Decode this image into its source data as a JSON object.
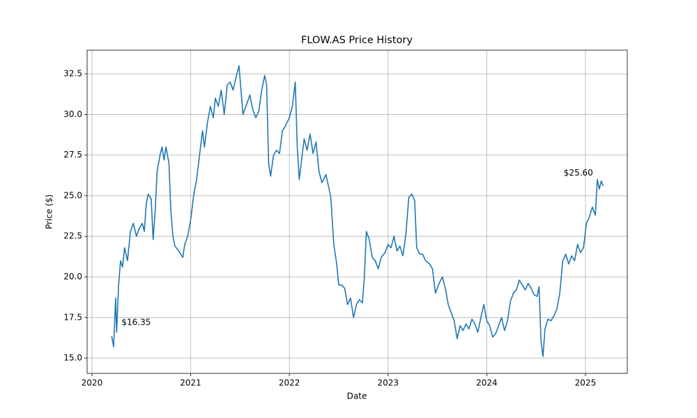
{
  "chart_data": {
    "type": "line",
    "title": "FLOW.AS Price History",
    "x_label": "Date",
    "y_label": "Price ($)",
    "grid": true,
    "xlim": [
      2019.951,
      2025.424
    ],
    "xticks": [
      2020,
      2021,
      2022,
      2023,
      2024,
      2025
    ],
    "ylim": [
      14.06,
      33.96
    ],
    "yticks": [
      {
        "value": 15,
        "label": "15.0"
      },
      {
        "value": 17.5,
        "label": "17.5"
      },
      {
        "value": 20,
        "label": "20.0"
      },
      {
        "value": 22.5,
        "label": "22.5"
      },
      {
        "value": 25,
        "label": "25.0"
      },
      {
        "value": 27.5,
        "label": "27.5"
      },
      {
        "value": 30,
        "label": "30.0"
      },
      {
        "value": 32.5,
        "label": "32.5"
      }
    ],
    "annotations": [
      {
        "text": "$16.35",
        "x": 2020.3,
        "y": 17.2
      },
      {
        "text": "$25.60",
        "x": 2024.78,
        "y": 26.4
      }
    ],
    "series": [
      {
        "name": "FLOW.AS",
        "color": "#1f77b4",
        "x": [
          2020.2,
          2020.22,
          2020.24,
          2020.25,
          2020.27,
          2020.29,
          2020.31,
          2020.33,
          2020.36,
          2020.39,
          2020.42,
          2020.45,
          2020.48,
          2020.51,
          2020.53,
          2020.55,
          2020.57,
          2020.6,
          2020.62,
          2020.64,
          2020.66,
          2020.69,
          2020.71,
          2020.73,
          2020.75,
          2020.78,
          2020.8,
          2020.82,
          2020.84,
          2020.88,
          2020.92,
          2020.94,
          2020.97,
          2021.0,
          2021.03,
          2021.06,
          2021.09,
          2021.12,
          2021.14,
          2021.17,
          2021.2,
          2021.23,
          2021.25,
          2021.28,
          2021.31,
          2021.34,
          2021.37,
          2021.4,
          2021.43,
          2021.46,
          2021.49,
          2021.51,
          2021.53,
          2021.56,
          2021.6,
          2021.63,
          2021.66,
          2021.69,
          2021.72,
          2021.75,
          2021.77,
          2021.79,
          2021.81,
          2021.84,
          2021.87,
          2021.9,
          2021.93,
          2021.96,
          2022.0,
          2022.03,
          2022.06,
          2022.08,
          2022.1,
          2022.12,
          2022.15,
          2022.18,
          2022.21,
          2022.24,
          2022.27,
          2022.3,
          2022.33,
          2022.37,
          2022.4,
          2022.42,
          2022.45,
          2022.48,
          2022.5,
          2022.53,
          2022.56,
          2022.59,
          2022.62,
          2022.65,
          2022.68,
          2022.71,
          2022.74,
          2022.76,
          2022.78,
          2022.81,
          2022.84,
          2022.87,
          2022.9,
          2022.93,
          2022.97,
          2023.0,
          2023.03,
          2023.06,
          2023.09,
          2023.12,
          2023.15,
          2023.18,
          2023.21,
          2023.24,
          2023.27,
          2023.29,
          2023.32,
          2023.35,
          2023.38,
          2023.42,
          2023.45,
          2023.48,
          2023.51,
          2023.55,
          2023.58,
          2023.61,
          2023.64,
          2023.67,
          2023.7,
          2023.73,
          2023.76,
          2023.79,
          2023.82,
          2023.85,
          2023.88,
          2023.91,
          2023.94,
          2023.97,
          2024.0,
          2024.03,
          2024.06,
          2024.09,
          2024.12,
          2024.15,
          2024.18,
          2024.21,
          2024.24,
          2024.27,
          2024.3,
          2024.33,
          2024.36,
          2024.39,
          2024.42,
          2024.45,
          2024.48,
          2024.51,
          2024.53,
          2024.55,
          2024.57,
          2024.59,
          2024.62,
          2024.65,
          2024.68,
          2024.71,
          2024.74,
          2024.77,
          2024.8,
          2024.83,
          2024.86,
          2024.89,
          2024.92,
          2024.95,
          2024.98,
          2025.01,
          2025.04,
          2025.07,
          2025.1,
          2025.12,
          2025.14,
          2025.16,
          2025.18
        ],
        "values": [
          16.35,
          15.7,
          18.7,
          16.6,
          19.5,
          21.0,
          20.6,
          21.8,
          21.0,
          22.8,
          23.3,
          22.5,
          23.0,
          23.3,
          22.8,
          24.5,
          25.1,
          24.8,
          22.3,
          24.0,
          26.5,
          27.5,
          28.0,
          27.2,
          28.0,
          27.0,
          24.0,
          22.5,
          21.9,
          21.6,
          21.2,
          22.0,
          22.5,
          23.5,
          25.0,
          26.0,
          27.5,
          29.0,
          28.0,
          29.5,
          30.5,
          29.8,
          31.0,
          30.5,
          31.5,
          30.0,
          31.8,
          32.0,
          31.5,
          32.3,
          33.0,
          31.5,
          30.0,
          30.5,
          31.2,
          30.3,
          29.8,
          30.2,
          31.5,
          32.4,
          31.8,
          27.0,
          26.2,
          27.5,
          27.8,
          27.6,
          29.0,
          29.3,
          29.8,
          30.5,
          32.0,
          28.0,
          26.0,
          27.0,
          28.5,
          27.8,
          28.8,
          27.6,
          28.3,
          26.5,
          25.8,
          26.3,
          25.5,
          24.9,
          22.0,
          20.8,
          19.5,
          19.5,
          19.3,
          18.3,
          18.7,
          17.5,
          18.3,
          18.6,
          18.4,
          20.0,
          22.8,
          22.3,
          21.2,
          21.0,
          20.5,
          21.2,
          21.5,
          22.0,
          21.8,
          22.5,
          21.6,
          21.9,
          21.3,
          22.6,
          24.9,
          25.1,
          24.7,
          21.8,
          21.4,
          21.4,
          21.0,
          20.8,
          20.5,
          19.0,
          19.5,
          20.0,
          19.3,
          18.3,
          17.8,
          17.3,
          16.2,
          17.0,
          16.7,
          17.1,
          16.8,
          17.4,
          17.1,
          16.6,
          17.5,
          18.3,
          17.3,
          17.0,
          16.3,
          16.5,
          17.0,
          17.5,
          16.7,
          17.3,
          18.5,
          19.0,
          19.2,
          19.8,
          19.5,
          19.2,
          19.6,
          19.3,
          18.9,
          18.8,
          19.4,
          16.0,
          15.1,
          16.8,
          17.4,
          17.3,
          17.6,
          18.0,
          19.0,
          21.0,
          21.4,
          20.8,
          21.3,
          21.0,
          22.0,
          21.5,
          21.8,
          23.3,
          23.7,
          24.3,
          23.8,
          26.0,
          25.4,
          25.9,
          25.6
        ]
      }
    ]
  }
}
